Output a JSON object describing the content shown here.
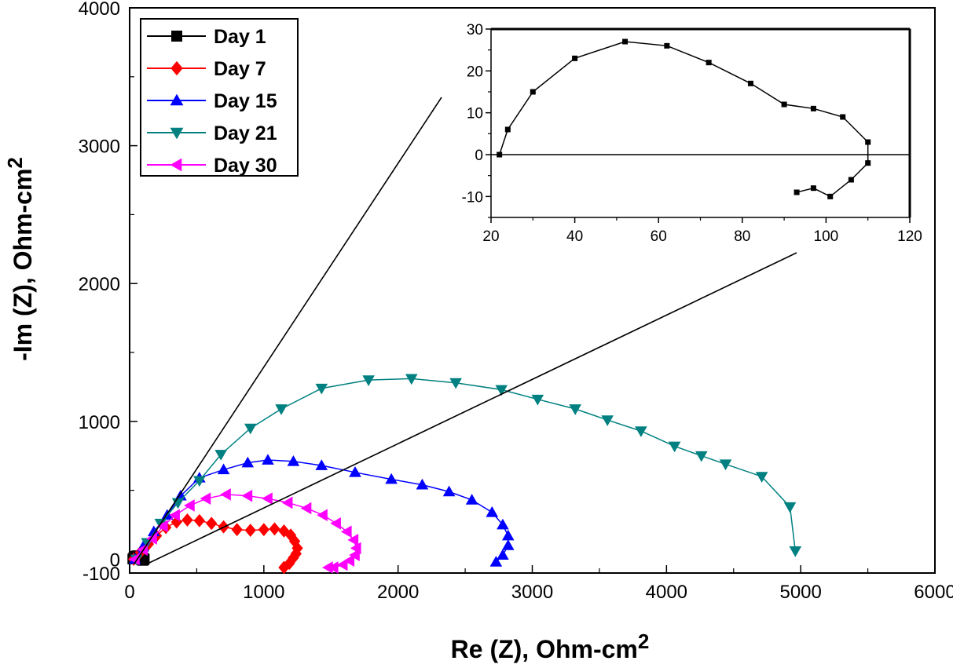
{
  "chart_data": {
    "type": "line",
    "title": "",
    "xlabel": "Re (Z), Ohm-cm",
    "xlabel_sup": "2",
    "ylabel": "-Im (Z), Ohm-cm",
    "ylabel_sup": "2",
    "xlim": [
      0,
      6000
    ],
    "ylim": [
      -100,
      4000
    ],
    "x_ticks": [
      0,
      1000,
      2000,
      3000,
      4000,
      5000,
      6000
    ],
    "x_tick_labels": [
      "0",
      "1000",
      "2000",
      "3000",
      "4000",
      "5000",
      "6000"
    ],
    "y_ticks": [
      -100,
      0,
      1000,
      2000,
      3000,
      4000
    ],
    "y_tick_labels": [
      "-100",
      "0",
      "1000",
      "2000",
      "3000",
      "4000"
    ],
    "grid": false,
    "legend_position": "top-left",
    "series": [
      {
        "name": "Day 1",
        "color": "#000000",
        "marker": "square",
        "x": [
          22,
          24,
          30,
          40,
          52,
          62,
          72,
          82,
          90,
          97,
          104,
          110,
          110,
          106,
          101,
          97,
          93
        ],
        "y": [
          0,
          6,
          15,
          23,
          27,
          26,
          22,
          17,
          12,
          11,
          9,
          3,
          -2,
          -6,
          -10,
          -8,
          -9
        ]
      },
      {
        "name": "Day 7",
        "color": "#ff0000",
        "marker": "diamond",
        "x": [
          30,
          80,
          140,
          200,
          270,
          350,
          430,
          520,
          610,
          700,
          800,
          900,
          1000,
          1080,
          1150,
          1200,
          1230,
          1250,
          1240,
          1220,
          1190,
          1150
        ],
        "y": [
          0,
          50,
          110,
          170,
          230,
          270,
          285,
          280,
          260,
          235,
          215,
          210,
          215,
          220,
          205,
          175,
          130,
          80,
          40,
          10,
          -30,
          -60
        ]
      },
      {
        "name": "Day 15",
        "color": "#0000ff",
        "marker": "triangle-up",
        "x": [
          40,
          100,
          180,
          280,
          380,
          520,
          700,
          880,
          1030,
          1220,
          1430,
          1680,
          1950,
          2180,
          2380,
          2550,
          2700,
          2780,
          2820,
          2820,
          2780,
          2730
        ],
        "y": [
          0,
          90,
          200,
          320,
          460,
          590,
          650,
          700,
          720,
          710,
          680,
          630,
          580,
          540,
          490,
          430,
          340,
          250,
          170,
          100,
          30,
          -20
        ]
      },
      {
        "name": "Day 21",
        "color": "#008080",
        "marker": "triangle-down",
        "x": [
          50,
          130,
          230,
          360,
          520,
          680,
          900,
          1130,
          1430,
          1780,
          2100,
          2430,
          2770,
          3040,
          3320,
          3560,
          3810,
          4060,
          4260,
          4440,
          4710,
          4920,
          4960
        ],
        "y": [
          0,
          120,
          260,
          410,
          570,
          760,
          950,
          1090,
          1240,
          1300,
          1310,
          1280,
          1230,
          1160,
          1090,
          1010,
          930,
          820,
          750,
          690,
          600,
          380,
          60
        ]
      },
      {
        "name": "Day 30",
        "color": "#ff00ff",
        "marker": "triangle-left",
        "x": [
          40,
          100,
          170,
          250,
          340,
          450,
          570,
          720,
          880,
          1030,
          1180,
          1320,
          1440,
          1540,
          1620,
          1670,
          1690,
          1680,
          1640,
          1590,
          1520,
          1480
        ],
        "y": [
          0,
          70,
          150,
          240,
          320,
          390,
          440,
          470,
          460,
          440,
          410,
          370,
          320,
          260,
          200,
          140,
          80,
          30,
          -10,
          -40,
          -60,
          -60
        ]
      }
    ],
    "inset": {
      "xlim": [
        20,
        120
      ],
      "ylim": [
        -15,
        30
      ],
      "x_ticks": [
        20,
        40,
        60,
        80,
        100,
        120
      ],
      "x_tick_labels": [
        "20",
        "40",
        "60",
        "80",
        "100",
        "120"
      ],
      "y_ticks": [
        -10,
        0,
        10,
        20,
        30
      ],
      "y_tick_labels": [
        "-10",
        "0",
        "10",
        "20",
        "30"
      ],
      "series_ref": "Day 1",
      "zero_line": true
    }
  }
}
